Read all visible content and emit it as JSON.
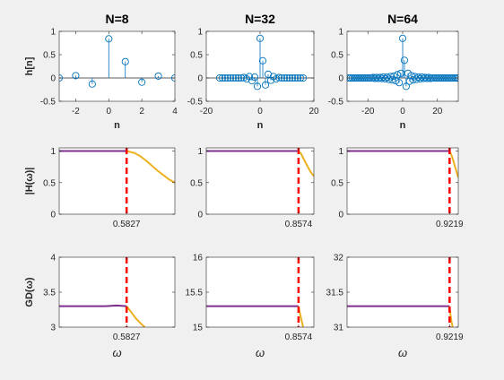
{
  "figure": {
    "background": "#f0f0f0",
    "axes_color": "#262626",
    "stem_color": "#0072bd",
    "passband_color": "#7e2f8e",
    "transition_color": "#edb120",
    "cutoff_color": "#ff0000"
  },
  "chart_data": [
    {
      "type": "stem",
      "title": "N=8",
      "ylabel": "h[n]",
      "xlabel": "n",
      "xlim": [
        -3,
        4
      ],
      "ylim": [
        -0.5,
        1
      ],
      "xticks": [
        -2,
        0,
        2,
        4
      ],
      "xtick_labels": [
        "-2",
        "0",
        "2",
        "4"
      ],
      "yticks": [
        -0.5,
        0,
        0.5,
        1
      ],
      "ytick_labels": [
        "-0.5",
        "0",
        "0.5",
        "1"
      ],
      "x": [
        -3,
        -2,
        -1,
        0,
        1,
        2,
        3,
        4
      ],
      "y": [
        0.0,
        0.05,
        -0.13,
        0.84,
        0.35,
        -0.09,
        0.04,
        0.0
      ]
    },
    {
      "type": "stem",
      "title": "N=32",
      "ylabel": "",
      "xlabel": "n",
      "xlim": [
        -20,
        20
      ],
      "ylim": [
        -0.5,
        1
      ],
      "xticks": [
        -20,
        0,
        20
      ],
      "xtick_labels": [
        "-20",
        "0",
        "20"
      ],
      "yticks": [
        -0.5,
        0,
        0.5,
        1
      ],
      "ytick_labels": [
        "-0.5",
        "0",
        "0.5",
        "1"
      ],
      "x": [
        -15,
        -14,
        -13,
        -12,
        -11,
        -10,
        -9,
        -8,
        -7,
        -6,
        -5,
        -4,
        -3,
        -2,
        -1,
        0,
        1,
        2,
        3,
        4,
        5,
        6,
        7,
        8,
        9,
        10,
        11,
        12,
        13,
        14,
        15,
        16
      ],
      "y": [
        0,
        0,
        0,
        0,
        0,
        0,
        0,
        0,
        0,
        0.01,
        -0.02,
        0.03,
        -0.06,
        0.02,
        -0.18,
        0.85,
        0.37,
        -0.15,
        0.08,
        -0.05,
        0.03,
        -0.02,
        0.01,
        0,
        0,
        0,
        0,
        0,
        0,
        0,
        0,
        0
      ]
    },
    {
      "type": "stem",
      "title": "N=64",
      "ylabel": "",
      "xlabel": "n",
      "xlim": [
        -32,
        32
      ],
      "ylim": [
        -0.5,
        1
      ],
      "xticks": [
        -20,
        0,
        20
      ],
      "xtick_labels": [
        "-20",
        "0",
        "20"
      ],
      "yticks": [
        -0.5,
        0,
        0.5,
        1
      ],
      "ytick_labels": [
        "-0.5",
        "0",
        "0.5",
        "1"
      ],
      "x": [
        -31,
        -30,
        -29,
        -28,
        -27,
        -26,
        -25,
        -24,
        -23,
        -22,
        -21,
        -20,
        -19,
        -18,
        -17,
        -16,
        -15,
        -14,
        -13,
        -12,
        -11,
        -10,
        -9,
        -8,
        -7,
        -6,
        -5,
        -4,
        -3,
        -2,
        -1,
        0,
        1,
        2,
        3,
        4,
        5,
        6,
        7,
        8,
        9,
        10,
        11,
        12,
        13,
        14,
        15,
        16,
        17,
        18,
        19,
        20,
        21,
        22,
        23,
        24,
        25,
        26,
        27,
        28,
        29,
        30,
        31,
        32
      ],
      "y": [
        0,
        0,
        0,
        0,
        0,
        0,
        0,
        0,
        0,
        0,
        0,
        0,
        0,
        0,
        0.01,
        -0.01,
        0.01,
        -0.01,
        0.01,
        -0.01,
        0.02,
        -0.02,
        0.02,
        -0.03,
        0.03,
        -0.04,
        0.04,
        -0.06,
        0.07,
        -0.1,
        0.1,
        0.85,
        0.38,
        -0.18,
        0.1,
        -0.07,
        0.05,
        -0.04,
        0.03,
        -0.03,
        0.02,
        -0.02,
        0.02,
        -0.01,
        0.01,
        -0.01,
        0.01,
        -0.01,
        0,
        0,
        0,
        0,
        0,
        0,
        0,
        0,
        0,
        0,
        0,
        0,
        0,
        0,
        0,
        0
      ]
    },
    {
      "type": "line",
      "title": "",
      "ylabel": "|H(ω)|",
      "xlabel": "",
      "xlim": [
        0,
        1
      ],
      "ylim": [
        0,
        1.05
      ],
      "xticks": [
        0.5827
      ],
      "xtick_labels": [
        "0.5827"
      ],
      "yticks": [
        0,
        0.5,
        1
      ],
      "ytick_labels": [
        "0",
        "0.5",
        "1"
      ],
      "cutoff": 0.5827,
      "series": [
        {
          "segment": "passband",
          "x": [
            0,
            0.1,
            0.2,
            0.3,
            0.4,
            0.5,
            0.5827
          ],
          "y": [
            1.0,
            1.0,
            1.0,
            1.0,
            1.0,
            1.0,
            1.0
          ]
        },
        {
          "segment": "transition",
          "x": [
            0.5827,
            0.65,
            0.7,
            0.75,
            0.8,
            0.85,
            0.9,
            0.95,
            1.0
          ],
          "y": [
            1.0,
            0.97,
            0.92,
            0.85,
            0.77,
            0.69,
            0.62,
            0.55,
            0.5
          ]
        }
      ]
    },
    {
      "type": "line",
      "title": "",
      "ylabel": "",
      "xlabel": "",
      "xlim": [
        0,
        1
      ],
      "ylim": [
        0,
        1.05
      ],
      "xticks": [
        0.8574
      ],
      "xtick_labels": [
        "0.8574"
      ],
      "yticks": [
        0,
        0.5,
        1
      ],
      "ytick_labels": [
        "0",
        "0.5",
        "1"
      ],
      "cutoff": 0.8574,
      "series": [
        {
          "segment": "passband",
          "x": [
            0,
            0.2,
            0.4,
            0.6,
            0.8,
            0.8574
          ],
          "y": [
            1.0,
            1.0,
            1.0,
            1.0,
            1.0,
            1.0
          ]
        },
        {
          "segment": "transition",
          "x": [
            0.8574,
            0.88,
            0.91,
            0.94,
            0.97,
            1.0
          ],
          "y": [
            1.0,
            0.96,
            0.86,
            0.76,
            0.67,
            0.6
          ]
        }
      ]
    },
    {
      "type": "line",
      "title": "",
      "ylabel": "",
      "xlabel": "",
      "xlim": [
        0,
        1
      ],
      "ylim": [
        0,
        1.05
      ],
      "xticks": [
        0.9219
      ],
      "xtick_labels": [
        "0.9219"
      ],
      "yticks": [
        0,
        0.5,
        1
      ],
      "ytick_labels": [
        "0",
        "0.5",
        "1"
      ],
      "cutoff": 0.9219,
      "series": [
        {
          "segment": "passband",
          "x": [
            0,
            0.2,
            0.4,
            0.6,
            0.8,
            0.9219
          ],
          "y": [
            1.0,
            1.0,
            1.0,
            1.0,
            1.0,
            1.0
          ]
        },
        {
          "segment": "transition",
          "x": [
            0.9219,
            0.94,
            0.96,
            0.98,
            1.0
          ],
          "y": [
            1.0,
            0.93,
            0.82,
            0.7,
            0.58
          ]
        }
      ]
    },
    {
      "type": "line",
      "title": "",
      "ylabel": "GD(ω)",
      "xlabel": "ω",
      "xlim": [
        0,
        1
      ],
      "ylim": [
        3,
        4
      ],
      "xticks": [
        0.5827
      ],
      "xtick_labels": [
        "0.5827"
      ],
      "yticks": [
        3,
        3.5,
        4
      ],
      "ytick_labels": [
        "3",
        "3.5",
        "4"
      ],
      "cutoff": 0.5827,
      "series": [
        {
          "segment": "passband",
          "x": [
            0,
            0.1,
            0.2,
            0.3,
            0.4,
            0.5,
            0.5827
          ],
          "y": [
            3.3,
            3.3,
            3.3,
            3.3,
            3.3,
            3.31,
            3.3
          ]
        },
        {
          "segment": "transition",
          "x": [
            0.5827,
            0.62,
            0.66,
            0.7,
            0.74
          ],
          "y": [
            3.3,
            3.22,
            3.13,
            3.06,
            3.0
          ]
        }
      ]
    },
    {
      "type": "line",
      "title": "",
      "ylabel": "",
      "xlabel": "ω",
      "xlim": [
        0,
        1
      ],
      "ylim": [
        15,
        16
      ],
      "xticks": [
        0.8574
      ],
      "xtick_labels": [
        "0.8574"
      ],
      "yticks": [
        15,
        15.5,
        16
      ],
      "ytick_labels": [
        "15",
        "15.5",
        "16"
      ],
      "cutoff": 0.8574,
      "series": [
        {
          "segment": "passband",
          "x": [
            0,
            0.2,
            0.4,
            0.6,
            0.8,
            0.8574
          ],
          "y": [
            15.3,
            15.3,
            15.3,
            15.3,
            15.3,
            15.3
          ]
        },
        {
          "segment": "transition",
          "x": [
            0.8574,
            0.87,
            0.885,
            0.9
          ],
          "y": [
            15.3,
            15.2,
            15.1,
            15.0
          ]
        }
      ]
    },
    {
      "type": "line",
      "title": "",
      "ylabel": "",
      "xlabel": "ω",
      "xlim": [
        0,
        1
      ],
      "ylim": [
        31,
        32
      ],
      "xticks": [
        0.9219
      ],
      "xtick_labels": [
        "0.9219"
      ],
      "yticks": [
        31,
        31.5,
        32
      ],
      "ytick_labels": [
        "31",
        "31.5",
        "32"
      ],
      "cutoff": 0.9219,
      "series": [
        {
          "segment": "passband",
          "x": [
            0,
            0.2,
            0.4,
            0.6,
            0.8,
            0.9219
          ],
          "y": [
            31.3,
            31.3,
            31.3,
            31.3,
            31.3,
            31.3
          ]
        },
        {
          "segment": "transition",
          "x": [
            0.9219,
            0.93,
            0.94,
            0.95
          ],
          "y": [
            31.3,
            31.18,
            31.07,
            31.0
          ]
        }
      ]
    }
  ]
}
